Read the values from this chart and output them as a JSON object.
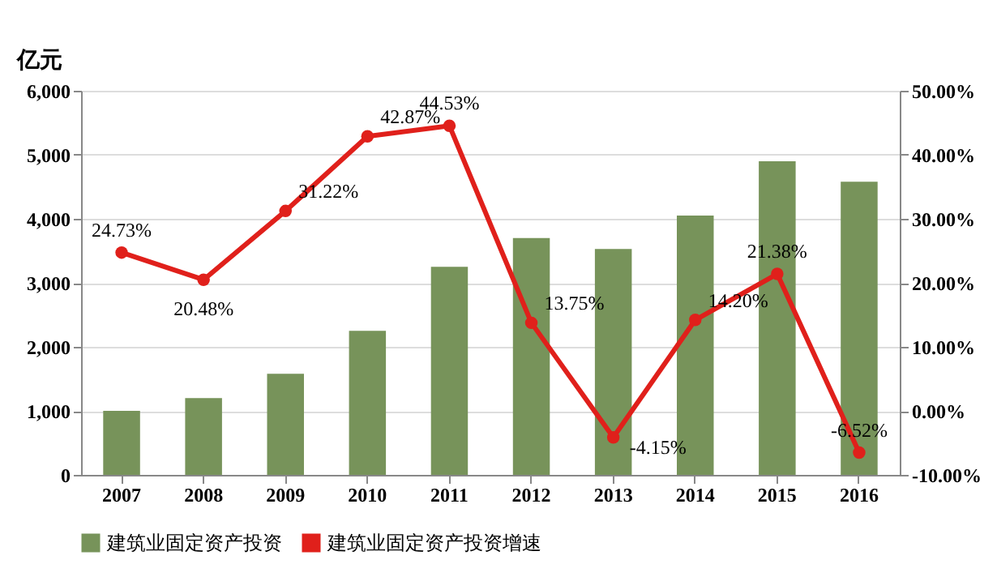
{
  "chart_data": {
    "type": "bar",
    "ylabel": "亿元",
    "categories": [
      "2007",
      "2008",
      "2009",
      "2010",
      "2011",
      "2012",
      "2013",
      "2014",
      "2015",
      "2016"
    ],
    "series": [
      {
        "name": "建筑业固定资产投资",
        "color": "#77935a",
        "values": [
          1000,
          1200,
          1580,
          2250,
          3250,
          3700,
          3530,
          4050,
          4900,
          4580
        ]
      },
      {
        "name": "建筑业固定资产投资增速",
        "type": "line",
        "axis": "y2",
        "color": "#e0201b",
        "marker": "circle",
        "values": [
          24.73,
          20.48,
          31.22,
          42.87,
          44.53,
          13.75,
          -4.15,
          14.2,
          21.38,
          -6.52
        ],
        "value_labels": [
          "24.73%",
          "20.48%",
          "31.22%",
          "42.87%",
          "44.53%",
          "13.75%",
          "-4.15%",
          "14.20%",
          "21.38%",
          "-6.52%"
        ]
      }
    ],
    "ylim": [
      0,
      6000
    ],
    "yticks": [
      0,
      {
        "value": 1000,
        "label": "1,000"
      },
      {
        "value": 2000,
        "label": "2,000"
      },
      {
        "value": 3000,
        "label": "3,000"
      },
      {
        "value": 4000,
        "label": "4,000"
      },
      {
        "value": 5000,
        "label": "5,000"
      },
      {
        "value": 6000,
        "label": "6,000"
      }
    ],
    "y2lim": [
      -10,
      50
    ],
    "y2ticks": [
      {
        "value": -10,
        "label": "-10.00%"
      },
      {
        "value": 0,
        "label": "0.00%"
      },
      {
        "value": 10,
        "label": "10.00%"
      },
      {
        "value": 20,
        "label": "20.00%"
      },
      {
        "value": 30,
        "label": "30.00%"
      },
      {
        "value": 40,
        "label": "40.00%"
      },
      {
        "value": 50,
        "label": "50.00%"
      }
    ],
    "grid": "y",
    "legend": "bottom"
  }
}
